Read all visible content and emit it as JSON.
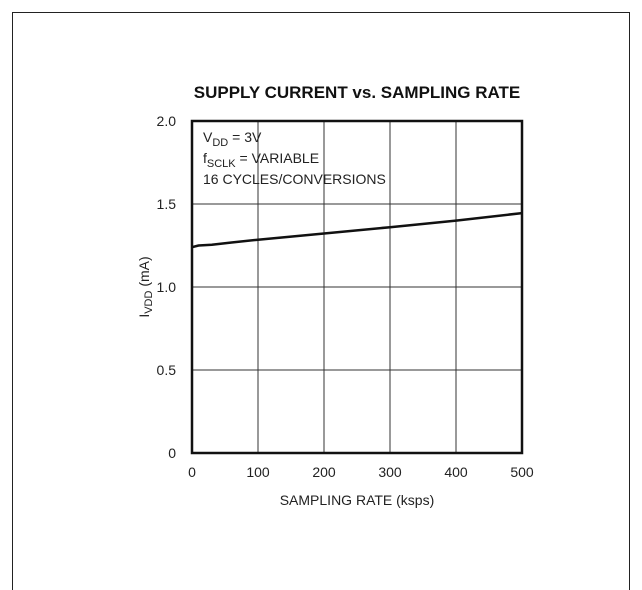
{
  "chart_data": {
    "type": "line",
    "title": "SUPPLY CURRENT vs. SAMPLING RATE",
    "xlabel": "SAMPLING RATE (ksps)",
    "ylabel": {
      "main": "I",
      "sub": "VDD",
      "unit": " (mA)"
    },
    "xlim": [
      0,
      500
    ],
    "ylim": [
      0,
      2.0
    ],
    "x_ticks": [
      0,
      100,
      200,
      300,
      400,
      500
    ],
    "x_tick_labels": [
      "0",
      "100",
      "200",
      "300",
      "400",
      "500"
    ],
    "y_ticks": [
      0,
      0.5,
      1.0,
      1.5,
      2.0
    ],
    "y_tick_labels": [
      "0",
      "0.5",
      "1.0",
      "1.5",
      "2.0"
    ],
    "grid": true,
    "series": [
      {
        "x": [
          0,
          10,
          30,
          60,
          100,
          200,
          300,
          400,
          500
        ],
        "y": [
          1.24,
          1.25,
          1.255,
          1.268,
          1.285,
          1.322,
          1.36,
          1.4,
          1.445
        ]
      }
    ],
    "annotations": [
      {
        "main": "V",
        "sub": "DD",
        "rest": " = 3V"
      },
      {
        "main": "f",
        "sub": "SCLK",
        "rest": " = VARIABLE"
      },
      {
        "main": "16 CYCLES/CONVERSIONS",
        "sub": "",
        "rest": ""
      }
    ]
  }
}
